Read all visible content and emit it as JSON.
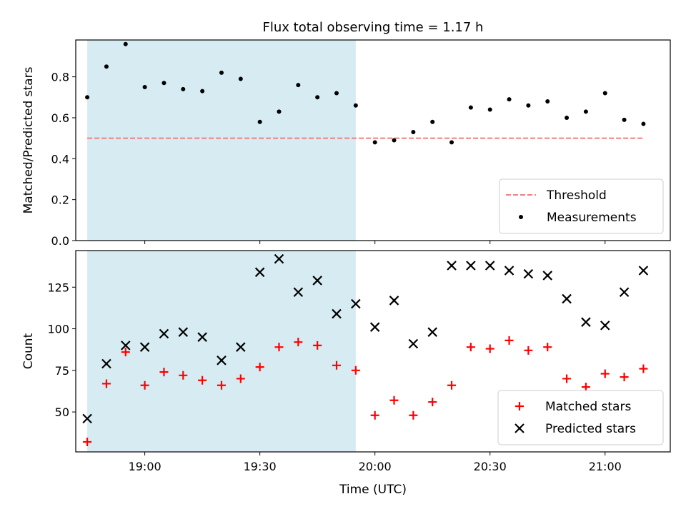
{
  "title": "Flux total observing time = 1.17 h",
  "colors": {
    "band": "#add8e6",
    "threshold": "#f08080",
    "matched": "#ff0000",
    "predicted": "#000000",
    "measurements": "#000000"
  },
  "chart_data": [
    {
      "type": "scatter",
      "title": "Flux total observing time = 1.17 h",
      "xlabel": "",
      "ylabel": "Matched/Predicted stars",
      "ylim": [
        0,
        0.98
      ],
      "yticks": [
        0.0,
        0.2,
        0.4,
        0.6,
        0.8
      ],
      "ytick_labels": [
        "0.0",
        "0.2",
        "0.4",
        "0.6",
        "0.8"
      ],
      "xlim": [
        "18:42",
        "21:17"
      ],
      "xticks": [
        "19:00",
        "19:30",
        "20:00",
        "20:30",
        "21:00"
      ],
      "shaded_interval": [
        "18:45",
        "19:55"
      ],
      "grid": false,
      "legend_placement": "lower right",
      "threshold": {
        "name": "Threshold",
        "value": 0.5,
        "x_range": [
          "18:45",
          "21:10"
        ]
      },
      "series": [
        {
          "name": "Measurements",
          "x": [
            "18:45",
            "18:50",
            "18:55",
            "19:00",
            "19:05",
            "19:10",
            "19:15",
            "19:20",
            "19:25",
            "19:30",
            "19:35",
            "19:40",
            "19:45",
            "19:50",
            "19:55",
            "20:00",
            "20:05",
            "20:10",
            "20:15",
            "20:20",
            "20:25",
            "20:30",
            "20:35",
            "20:40",
            "20:45",
            "20:50",
            "20:55",
            "21:00",
            "21:05",
            "21:10"
          ],
          "y": [
            0.7,
            0.85,
            0.96,
            0.75,
            0.77,
            0.74,
            0.73,
            0.82,
            0.79,
            0.58,
            0.63,
            0.76,
            0.7,
            0.72,
            0.66,
            0.48,
            0.49,
            0.53,
            0.58,
            0.48,
            0.65,
            0.64,
            0.69,
            0.66,
            0.68,
            0.6,
            0.63,
            0.72,
            0.59,
            0.57
          ]
        }
      ]
    },
    {
      "type": "scatter",
      "title": "",
      "xlabel": "Time (UTC)",
      "ylabel": "Count",
      "ylim": [
        26,
        147
      ],
      "yticks": [
        50,
        75,
        100,
        125
      ],
      "ytick_labels": [
        "50",
        "75",
        "100",
        "125"
      ],
      "xlim": [
        "18:42",
        "21:17"
      ],
      "xticks": [
        "19:00",
        "19:30",
        "20:00",
        "20:30",
        "21:00"
      ],
      "shaded_interval": [
        "18:45",
        "19:55"
      ],
      "grid": false,
      "legend_placement": "lower right",
      "series": [
        {
          "name": "Matched stars",
          "marker": "plus",
          "x": [
            "18:45",
            "18:50",
            "18:55",
            "19:00",
            "19:05",
            "19:10",
            "19:15",
            "19:20",
            "19:25",
            "19:30",
            "19:35",
            "19:40",
            "19:45",
            "19:50",
            "19:55",
            "20:00",
            "20:05",
            "20:10",
            "20:15",
            "20:20",
            "20:25",
            "20:30",
            "20:35",
            "20:40",
            "20:45",
            "20:50",
            "20:55",
            "21:00",
            "21:05",
            "21:10"
          ],
          "y": [
            32,
            67,
            86,
            66,
            74,
            72,
            69,
            66,
            70,
            77,
            89,
            92,
            90,
            78,
            75,
            48,
            57,
            48,
            56,
            66,
            89,
            88,
            93,
            87,
            89,
            70,
            65,
            73,
            71,
            76
          ]
        },
        {
          "name": "Predicted stars",
          "marker": "x",
          "x": [
            "18:45",
            "18:50",
            "18:55",
            "19:00",
            "19:05",
            "19:10",
            "19:15",
            "19:20",
            "19:25",
            "19:30",
            "19:35",
            "19:40",
            "19:45",
            "19:50",
            "19:55",
            "20:00",
            "20:05",
            "20:10",
            "20:15",
            "20:20",
            "20:25",
            "20:30",
            "20:35",
            "20:40",
            "20:45",
            "20:50",
            "20:55",
            "21:00",
            "21:05",
            "21:10"
          ],
          "y": [
            46,
            79,
            90,
            89,
            97,
            98,
            95,
            81,
            89,
            134,
            142,
            122,
            129,
            109,
            115,
            101,
            117,
            91,
            98,
            138,
            138,
            138,
            135,
            133,
            132,
            118,
            104,
            102,
            122,
            135
          ]
        }
      ]
    }
  ]
}
